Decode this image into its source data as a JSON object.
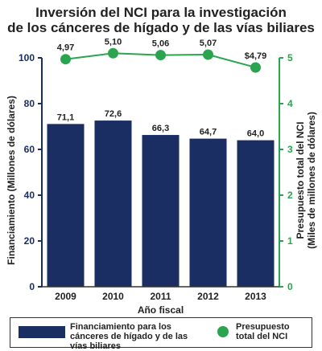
{
  "title": {
    "line1": "Inversión del NCI para la investigación",
    "line2": "de los cánceres de hígado y de las vías biliares"
  },
  "colors": {
    "bar": "#1a2e63",
    "line": "#2aa44e",
    "left_axis": "#1a2e63",
    "right_axis": "#2aa44e"
  },
  "chart_data": {
    "type": "bar",
    "categories": [
      "2009",
      "2010",
      "2011",
      "2012",
      "2013"
    ],
    "xlabel": "Año fiscal",
    "ylabel": "Financiamiento (Millones de dólares)",
    "y2label": [
      "Presupuesto total del NCI",
      "(Miles de millones de dólares)"
    ],
    "ylim": [
      0,
      100
    ],
    "y2lim": [
      0,
      5
    ],
    "yticks": [
      "0",
      "20",
      "40",
      "60",
      "80",
      "100"
    ],
    "y2ticks": [
      "0",
      "1",
      "2",
      "3",
      "4",
      "5"
    ],
    "series": [
      {
        "name": "Financiamiento para los cánceres de hígado y de las vías biliares",
        "type": "bar",
        "values": [
          71.1,
          72.6,
          66.3,
          64.7,
          64.0
        ],
        "labels": [
          "71,1",
          "72,6",
          "66,3",
          "64,7",
          "64,0"
        ]
      },
      {
        "name": "Presupuesto total del NCI",
        "type": "line",
        "axis": "right",
        "values": [
          4.97,
          5.1,
          5.06,
          5.07,
          4.79
        ],
        "labels": [
          "4,97",
          "5,10",
          "5,06",
          "5,07",
          "$4,79"
        ]
      }
    ],
    "grid": false,
    "legend": "bottom"
  },
  "legend": {
    "bar_label": "Financiamiento para los cánceres de hígado y de las vías biliares",
    "line_label": "Presupuesto total del NCI"
  }
}
